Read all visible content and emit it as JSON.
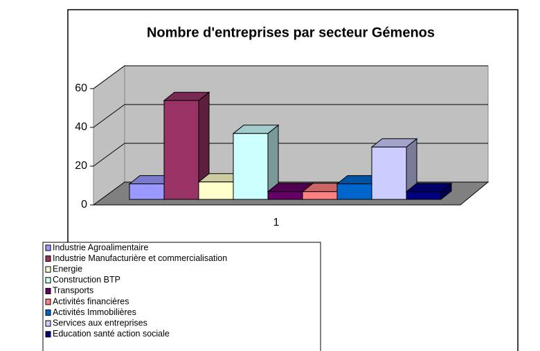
{
  "chart_data": {
    "type": "bar3d",
    "title": "Nombre d'entreprises par secteur Gémenos",
    "categories": [
      "1"
    ],
    "series": [
      {
        "name": "Industrie Agroalimentaire",
        "color": "#9999ff",
        "values": [
          8
        ]
      },
      {
        "name": "Industrie Manufacturière et commercialisation",
        "color": "#993366",
        "values": [
          51
        ]
      },
      {
        "name": "Energie",
        "color": "#ffffcc",
        "values": [
          9
        ]
      },
      {
        "name": "Construction BTP",
        "color": "#ccffff",
        "values": [
          34
        ]
      },
      {
        "name": "Transports",
        "color": "#660066",
        "values": [
          4
        ]
      },
      {
        "name": "Activités financières",
        "color": "#ff8080",
        "values": [
          4
        ]
      },
      {
        "name": "Activités Immobilières",
        "color": "#0066cc",
        "values": [
          8
        ]
      },
      {
        "name": "Services aux entreprises",
        "color": "#ccccff",
        "values": [
          27
        ]
      },
      {
        "name": "Education santé action sociale",
        "color": "#000080",
        "values": [
          4
        ]
      }
    ],
    "ylim": [
      0,
      60
    ],
    "yticks": [
      0,
      20,
      40,
      60
    ],
    "grid": true,
    "legend": "bottom-left"
  }
}
